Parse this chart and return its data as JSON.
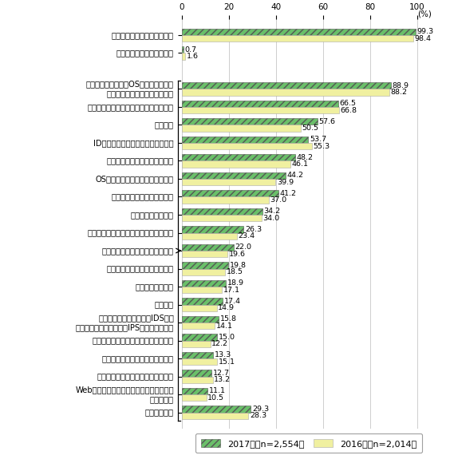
{
  "categories": [
    "何らかの対策を実施している",
    "特に対策を実施していない",
    "",
    "パソコン等の端末（OS、ソフト等）に\nウイルス対策プログラムを導入",
    "サーバにウイルス対策プログラムを導入",
    "社員教育",
    "ID、パスワードによるアクセス制御",
    "ファイアウォールの設置・導入",
    "OSへのセキュリティパッチの導入",
    "セキュリティポリシーの策定",
    "アクセスログの記録",
    "外部接続の際にウイルスウォールを構築",
    "プロキシ（代理サーバ）等の利用",
    "データやネットワークの暗号化",
    "セキュリティ監査",
    "回線監視",
    "不正侵入検知システム（IDS）・\n不正侵入防御システム（IPS）の設置・導入",
    "セキュリティ管理のアウトソーシング",
    "認証技術の導入による利用者確認",
    "ウイルス対策対応マニュアルを策定",
    "Webアプリケーションファイアウォールの\n設置・導入",
    "その他の対策"
  ],
  "values_2017": [
    99.3,
    0.7,
    0,
    88.9,
    66.5,
    57.6,
    53.7,
    48.2,
    44.2,
    41.2,
    34.2,
    26.3,
    22.0,
    19.8,
    18.9,
    17.4,
    15.8,
    15.0,
    13.3,
    12.7,
    11.1,
    29.3
  ],
  "values_2016": [
    98.4,
    1.6,
    0,
    88.2,
    66.8,
    50.5,
    55.3,
    46.1,
    39.9,
    37.0,
    34.0,
    23.4,
    19.6,
    18.5,
    17.1,
    14.9,
    14.1,
    12.2,
    15.1,
    13.2,
    10.5,
    28.3
  ],
  "color_2017": "#6abf69",
  "color_2016": "#f0f0a0",
  "hatch_2017": "////",
  "xlim": [
    0,
    108
  ],
  "xticks": [
    0,
    20,
    40,
    60,
    80,
    100
  ],
  "legend_2017": "2017年（n=2,554）",
  "legend_2016": "2016年（n=2,014）",
  "bar_height": 0.37,
  "fontsize_label": 7.2,
  "fontsize_value": 6.8,
  "pct_label": "(%)"
}
